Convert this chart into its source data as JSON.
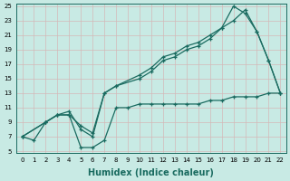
{
  "xlabel": "Humidex (Indice chaleur)",
  "bg_color": "#c8eae4",
  "grid_color": "#d4b8b8",
  "line_color": "#1a6b60",
  "line1_x": [
    0,
    1,
    2,
    3,
    4,
    5,
    6,
    7,
    8,
    9,
    10,
    11,
    12,
    13,
    14,
    15,
    16,
    17,
    18,
    19,
    20,
    21,
    22
  ],
  "line1_y": [
    7,
    6.5,
    9,
    10,
    10,
    5.5,
    5.5,
    6.5,
    11,
    11,
    11.5,
    11.5,
    11.5,
    11.5,
    11.5,
    11.5,
    12,
    12,
    12.5,
    12.5,
    12.5,
    13,
    13
  ],
  "line2_x": [
    0,
    2,
    3,
    4,
    5,
    6,
    7,
    8,
    10,
    11,
    12,
    13,
    14,
    15,
    16,
    17,
    18,
    19,
    20,
    21,
    22
  ],
  "line2_y": [
    7,
    9,
    10,
    10,
    8.5,
    7.5,
    13,
    14,
    15,
    16,
    17.5,
    18,
    19,
    19.5,
    20.5,
    22,
    23,
    24.5,
    21.5,
    17.5,
    13
  ],
  "line3_x": [
    0,
    2,
    3,
    4,
    5,
    6,
    7,
    8,
    10,
    11,
    12,
    13,
    14,
    15,
    16,
    17,
    18,
    19,
    20,
    21,
    22
  ],
  "line3_y": [
    7,
    9,
    10,
    10.5,
    8,
    7,
    13,
    14,
    15.5,
    16.5,
    18,
    18.5,
    19.5,
    20,
    21,
    22,
    25,
    24,
    21.5,
    17.5,
    13
  ],
  "ylim": [
    5,
    25
  ],
  "xlim": [
    -0.5,
    22.5
  ],
  "yticks": [
    5,
    7,
    9,
    11,
    13,
    15,
    17,
    19,
    21,
    23,
    25
  ],
  "xticks": [
    0,
    1,
    2,
    3,
    4,
    5,
    6,
    7,
    8,
    9,
    10,
    11,
    12,
    13,
    14,
    15,
    16,
    17,
    18,
    19,
    20,
    21,
    22
  ],
  "xlabel_fontsize": 7,
  "tick_fontsize": 5,
  "linewidth": 0.9,
  "markersize": 3.5
}
